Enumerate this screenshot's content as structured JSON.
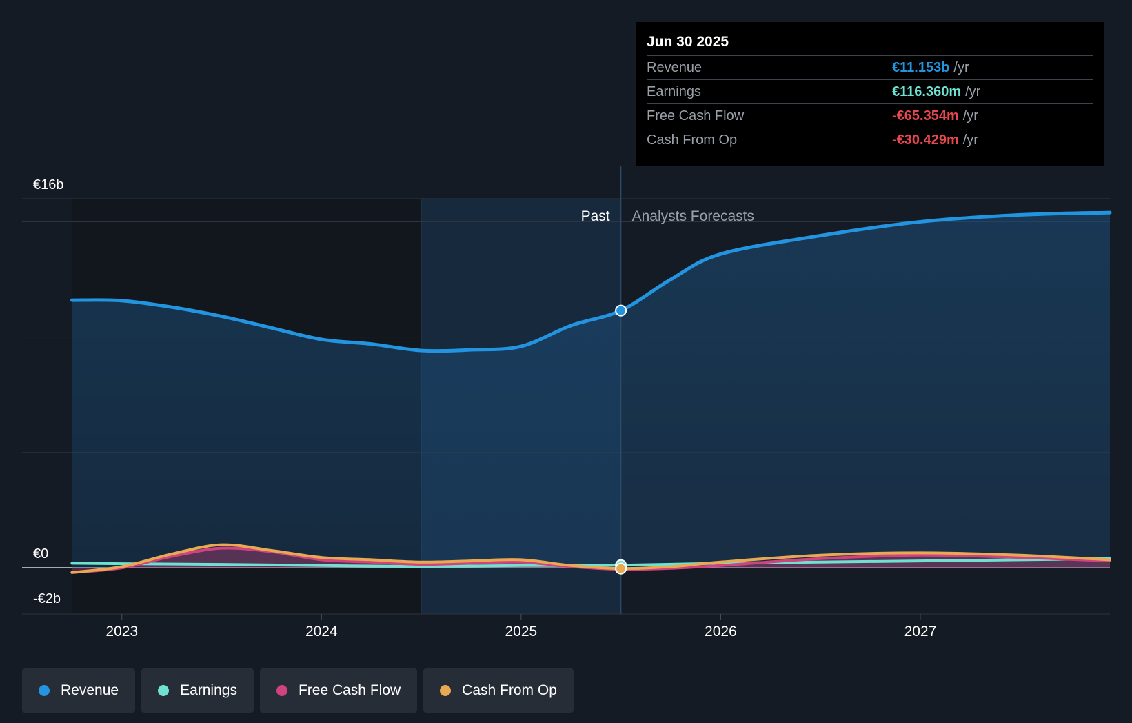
{
  "chart_data": {
    "type": "line",
    "title": "",
    "x_unit": "year",
    "xlim": [
      2022.5,
      2027.95
    ],
    "ylim": [
      -2,
      16
    ],
    "y_ticks": [
      {
        "value": 16,
        "label": "€16b"
      },
      {
        "value": 0,
        "label": "€0"
      },
      {
        "value": -2,
        "label": "-€2b"
      }
    ],
    "x_ticks": [
      {
        "value": 2023,
        "label": "2023"
      },
      {
        "value": 2024,
        "label": "2024"
      },
      {
        "value": 2025,
        "label": "2025"
      },
      {
        "value": 2026,
        "label": "2026"
      },
      {
        "value": 2027,
        "label": "2027"
      }
    ],
    "grid_values": [
      16,
      15,
      10,
      5,
      0,
      -2
    ],
    "past_label": "Past",
    "forecast_label": "Analysts Forecasts",
    "divider_x": 2025.5,
    "highlight_start_x": 2024.5,
    "series": [
      {
        "name": "Revenue",
        "color": "#2394df",
        "fill": true,
        "points": [
          [
            2022.75,
            11.6
          ],
          [
            2023.0,
            11.58
          ],
          [
            2023.25,
            11.3
          ],
          [
            2023.5,
            10.9
          ],
          [
            2023.75,
            10.4
          ],
          [
            2024.0,
            9.9
          ],
          [
            2024.25,
            9.7
          ],
          [
            2024.5,
            9.42
          ],
          [
            2024.75,
            9.45
          ],
          [
            2025.0,
            9.6
          ],
          [
            2025.25,
            10.5
          ],
          [
            2025.5,
            11.153
          ],
          [
            2025.75,
            12.5
          ],
          [
            2026.0,
            13.6
          ],
          [
            2026.5,
            14.4
          ],
          [
            2027.0,
            15.0
          ],
          [
            2027.5,
            15.3
          ],
          [
            2027.95,
            15.4
          ]
        ]
      },
      {
        "name": "Earnings",
        "color": "#6ee1d1",
        "fill": false,
        "points": [
          [
            2022.75,
            0.2
          ],
          [
            2023.0,
            0.18
          ],
          [
            2023.5,
            0.15
          ],
          [
            2024.0,
            0.1
          ],
          [
            2024.5,
            0.06
          ],
          [
            2025.0,
            0.1
          ],
          [
            2025.5,
            0.116
          ],
          [
            2026.0,
            0.2
          ],
          [
            2026.5,
            0.25
          ],
          [
            2027.0,
            0.3
          ],
          [
            2027.5,
            0.35
          ],
          [
            2027.95,
            0.4
          ]
        ]
      },
      {
        "name": "Free Cash Flow",
        "color": "#d1437e",
        "fill": true,
        "points": [
          [
            2022.75,
            -0.2
          ],
          [
            2023.0,
            0.0
          ],
          [
            2023.25,
            0.5
          ],
          [
            2023.5,
            0.85
          ],
          [
            2023.75,
            0.7
          ],
          [
            2024.0,
            0.35
          ],
          [
            2024.25,
            0.25
          ],
          [
            2024.5,
            0.15
          ],
          [
            2024.75,
            0.2
          ],
          [
            2025.0,
            0.25
          ],
          [
            2025.25,
            0.05
          ],
          [
            2025.5,
            -0.065
          ],
          [
            2025.75,
            -0.02
          ],
          [
            2026.0,
            0.1
          ],
          [
            2026.5,
            0.4
          ],
          [
            2027.0,
            0.55
          ],
          [
            2027.5,
            0.45
          ],
          [
            2027.95,
            0.3
          ]
        ]
      },
      {
        "name": "Cash From Op",
        "color": "#e8a953",
        "fill": false,
        "points": [
          [
            2022.75,
            -0.2
          ],
          [
            2023.0,
            0.05
          ],
          [
            2023.25,
            0.6
          ],
          [
            2023.5,
            1.0
          ],
          [
            2023.75,
            0.75
          ],
          [
            2024.0,
            0.45
          ],
          [
            2024.25,
            0.35
          ],
          [
            2024.5,
            0.25
          ],
          [
            2024.75,
            0.3
          ],
          [
            2025.0,
            0.35
          ],
          [
            2025.25,
            0.1
          ],
          [
            2025.5,
            -0.03
          ],
          [
            2025.75,
            0.05
          ],
          [
            2026.0,
            0.25
          ],
          [
            2026.5,
            0.55
          ],
          [
            2027.0,
            0.65
          ],
          [
            2027.5,
            0.55
          ],
          [
            2027.95,
            0.35
          ]
        ]
      }
    ],
    "markers": [
      {
        "series": "Revenue",
        "x": 2025.5,
        "y": 11.153
      },
      {
        "series": "Earnings",
        "x": 2025.5,
        "y": 0.116
      },
      {
        "series": "Cash From Op",
        "x": 2025.5,
        "y": -0.03
      }
    ]
  },
  "tooltip": {
    "date": "Jun 30 2025",
    "unit": "/yr",
    "rows": [
      {
        "label": "Revenue",
        "value": "€11.153b",
        "color": "#2394df"
      },
      {
        "label": "Earnings",
        "value": "€116.360m",
        "color": "#6ee1d1"
      },
      {
        "label": "Free Cash Flow",
        "value": "-€65.354m",
        "color": "#e5484d"
      },
      {
        "label": "Cash From Op",
        "value": "-€30.429m",
        "color": "#e5484d"
      }
    ]
  },
  "legend": [
    {
      "label": "Revenue",
      "color": "#2394df"
    },
    {
      "label": "Earnings",
      "color": "#6ee1d1"
    },
    {
      "label": "Free Cash Flow",
      "color": "#d1437e"
    },
    {
      "label": "Cash From Op",
      "color": "#e8a953"
    }
  ]
}
